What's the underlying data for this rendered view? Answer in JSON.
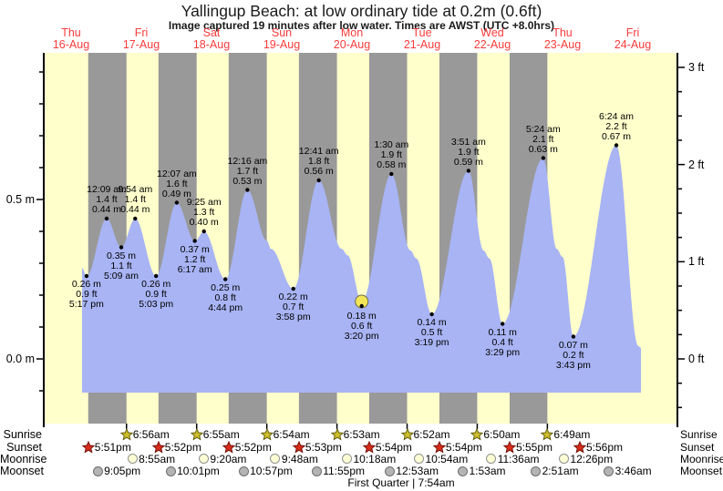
{
  "title": "Yallingup Beach: at low  ordinary tide at 0.2m (0.6ft)",
  "subtitle": "Image captured 19 minutes after low water. Times are AWST (UTC +8.0hrs)",
  "days": [
    {
      "name": "Thu",
      "date": "16-Aug"
    },
    {
      "name": "Fri",
      "date": "17-Aug"
    },
    {
      "name": "Sat",
      "date": "18-Aug"
    },
    {
      "name": "Sun",
      "date": "19-Aug"
    },
    {
      "name": "Mon",
      "date": "20-Aug"
    },
    {
      "name": "Tue",
      "date": "21-Aug"
    },
    {
      "name": "Wed",
      "date": "22-Aug"
    },
    {
      "name": "Thu",
      "date": "23-Aug"
    },
    {
      "name": "Fri",
      "date": "24-Aug"
    }
  ],
  "left_axis": {
    "unit": "m",
    "labels": [
      {
        "text": "0.5 m",
        "value": 0.5
      },
      {
        "text": "0.0 m",
        "value": 0.0
      }
    ]
  },
  "right_axis": {
    "unit": "ft",
    "labels": [
      {
        "text": "3 ft",
        "value": 3
      },
      {
        "text": "2 ft",
        "value": 2
      },
      {
        "text": "1 ft",
        "value": 1
      },
      {
        "text": "0 ft",
        "value": 0
      }
    ]
  },
  "chart_data": {
    "type": "area",
    "x_unit": "hours_from_Thu16_midnight",
    "y_unit": "m",
    "ylim": [
      -0.11,
      1.0
    ],
    "tide_events": [
      {
        "kind": "low",
        "t": 17.283,
        "height_m": 0.26,
        "height_ft": 0.9,
        "time": "5:17 pm",
        "lines": [
          "0.26 m",
          "0.9 ft",
          "5:17 pm"
        ]
      },
      {
        "kind": "high",
        "t": 24.15,
        "height_m": 0.44,
        "height_ft": 1.4,
        "time": "12:09 am",
        "lines": [
          "12:09 am",
          "1.4 ft",
          "0.44 m"
        ]
      },
      {
        "kind": "low",
        "t": 29.15,
        "height_m": 0.35,
        "height_ft": 1.1,
        "time": "5:09 am",
        "lines": [
          "0.35 m",
          "1.1 ft",
          "5:09 am"
        ]
      },
      {
        "kind": "high",
        "t": 33.9,
        "height_m": 0.44,
        "height_ft": 1.4,
        "time": "9:54 am",
        "lines": [
          "9:54 am",
          "1.4 ft",
          "0.44 m"
        ]
      },
      {
        "kind": "low",
        "t": 41.05,
        "height_m": 0.26,
        "height_ft": 0.9,
        "time": "5:03 pm",
        "lines": [
          "0.26 m",
          "0.9 ft",
          "5:03 pm"
        ]
      },
      {
        "kind": "high",
        "t": 48.117,
        "height_m": 0.49,
        "height_ft": 1.6,
        "time": "12:07 am",
        "lines": [
          "12:07 am",
          "1.6 ft",
          "0.49 m"
        ]
      },
      {
        "kind": "low",
        "t": 54.283,
        "height_m": 0.37,
        "height_ft": 1.2,
        "time": "6:17 am",
        "lines": [
          "0.37 m",
          "1.2 ft",
          "6:17 am"
        ]
      },
      {
        "kind": "high",
        "t": 57.417,
        "height_m": 0.4,
        "height_ft": 1.3,
        "time": "9:25 am",
        "lines": [
          "9:25 am",
          "1.3 ft",
          "0.40 m"
        ]
      },
      {
        "kind": "low",
        "t": 64.733,
        "height_m": 0.25,
        "height_ft": 0.8,
        "time": "4:44 pm",
        "lines": [
          "0.25 m",
          "0.8 ft",
          "4:44 pm"
        ]
      },
      {
        "kind": "high",
        "t": 72.267,
        "height_m": 0.53,
        "height_ft": 1.7,
        "time": "12:16 am",
        "lines": [
          "12:16 am",
          "1.7 ft",
          "0.53 m"
        ]
      },
      {
        "kind": "low",
        "t": 87.967,
        "height_m": 0.22,
        "height_ft": 0.7,
        "time": "3:58 pm",
        "lines": [
          "0.22 m",
          "0.7 ft",
          "3:58 pm"
        ]
      },
      {
        "kind": "high",
        "t": 96.683,
        "height_m": 0.56,
        "height_ft": 1.8,
        "time": "12:41 am",
        "lines": [
          "12:41 am",
          "1.8 ft",
          "0.56 m"
        ]
      },
      {
        "kind": "low",
        "t": 111.333,
        "height_m": 0.18,
        "height_ft": 0.6,
        "time": "3:20 pm",
        "current": true,
        "lines": [
          "0.18 m",
          "0.6 ft",
          "3:20 pm"
        ]
      },
      {
        "kind": "high",
        "t": 121.5,
        "height_m": 0.58,
        "height_ft": 1.9,
        "time": "1:30 am",
        "lines": [
          "1:30 am",
          "1.9 ft",
          "0.58 m"
        ]
      },
      {
        "kind": "low",
        "t": 135.317,
        "height_m": 0.14,
        "height_ft": 0.5,
        "time": "3:19 pm",
        "lines": [
          "0.14 m",
          "0.5 ft",
          "3:19 pm"
        ]
      },
      {
        "kind": "high",
        "t": 147.85,
        "height_m": 0.59,
        "height_ft": 1.9,
        "time": "3:51 am",
        "lines": [
          "3:51 am",
          "1.9 ft",
          "0.59 m"
        ]
      },
      {
        "kind": "low",
        "t": 159.483,
        "height_m": 0.11,
        "height_ft": 0.4,
        "time": "3:29 pm",
        "lines": [
          "0.11 m",
          "0.4 ft",
          "3:29 pm"
        ]
      },
      {
        "kind": "high",
        "t": 173.4,
        "height_m": 0.63,
        "height_ft": 2.1,
        "time": "5:24 am",
        "lines": [
          "5:24 am",
          "2.1 ft",
          "0.63 m"
        ]
      },
      {
        "kind": "low",
        "t": 183.717,
        "height_m": 0.07,
        "height_ft": 0.2,
        "time": "3:43 pm",
        "lines": [
          "0.07 m",
          "0.2 ft",
          "3:43 pm"
        ]
      },
      {
        "kind": "high",
        "t": 198.4,
        "height_m": 0.67,
        "height_ft": 2.2,
        "time": "6:24 am",
        "lines": [
          "6:24 am",
          "2.2 ft",
          "0.67 m"
        ]
      }
    ],
    "shape_points": [
      [
        15.75,
        0.285
      ],
      [
        79.0,
        0.37
      ],
      [
        80.3,
        0.345
      ],
      [
        104.5,
        0.345
      ],
      [
        106.5,
        0.325
      ],
      [
        128.0,
        0.34
      ],
      [
        130.0,
        0.315
      ],
      [
        153.0,
        0.34
      ],
      [
        155.0,
        0.315
      ],
      [
        178.0,
        0.345
      ],
      [
        180.0,
        0.32
      ],
      [
        205.9,
        0.04
      ],
      [
        206.8,
        0.035
      ]
    ],
    "current_marker": {
      "t": 111.333,
      "height_m": 0.18
    },
    "colors": {
      "day_band": "#ffffcc",
      "night_band": "#999999",
      "tide_fill": "#a8b4f4",
      "marker_fill": "#f2e656",
      "marker_stroke": "#6b6b4a",
      "day_label_red": "#fb3b3b",
      "axis": "#000000",
      "sunrise_star_fill": "#cdbd2a",
      "sunrise_star_stroke": "#5f5a0e",
      "sunset_star_fill": "#d92c1b",
      "sunset_star_stroke": "#6d1007",
      "moonrise_fill": "#ffffd6",
      "moonrise_stroke": "#8f8f8f",
      "moonset_fill": "#b4b4b4",
      "moonset_stroke": "#6e6e6e"
    }
  },
  "astronomy": {
    "rows": [
      {
        "id": "sunrise",
        "label": "Sunrise",
        "icon": "star",
        "color_key": "sunrise",
        "events": [
          {
            "day": 1,
            "time": "6:56am"
          },
          {
            "day": 2,
            "time": "6:55am"
          },
          {
            "day": 3,
            "time": "6:54am"
          },
          {
            "day": 4,
            "time": "6:53am"
          },
          {
            "day": 5,
            "time": "6:52am"
          },
          {
            "day": 6,
            "time": "6:50am"
          },
          {
            "day": 7,
            "time": "6:49am"
          }
        ]
      },
      {
        "id": "sunset",
        "label": "Sunset",
        "icon": "star",
        "color_key": "sunset",
        "events": [
          {
            "day": 0,
            "time": "5:51pm"
          },
          {
            "day": 1,
            "time": "5:52pm"
          },
          {
            "day": 2,
            "time": "5:52pm"
          },
          {
            "day": 3,
            "time": "5:53pm"
          },
          {
            "day": 4,
            "time": "5:54pm"
          },
          {
            "day": 5,
            "time": "5:54pm"
          },
          {
            "day": 6,
            "time": "5:55pm"
          },
          {
            "day": 7,
            "time": "5:56pm"
          }
        ]
      },
      {
        "id": "moonrise",
        "label": "Moonrise",
        "icon": "circle",
        "color_key": "moonrise",
        "events": [
          {
            "day": 1,
            "time": "8:55am"
          },
          {
            "day": 2,
            "time": "9:20am"
          },
          {
            "day": 3,
            "time": "9:48am"
          },
          {
            "day": 4,
            "time": "10:18am"
          },
          {
            "day": 5,
            "time": "10:54am"
          },
          {
            "day": 6,
            "time": "11:36am"
          },
          {
            "day": 7,
            "time": "12:26pm"
          }
        ]
      },
      {
        "id": "moonset",
        "label": "Moonset",
        "icon": "circle",
        "color_key": "moonset",
        "events": [
          {
            "day": 0,
            "time": "9:05pm"
          },
          {
            "day": 1,
            "time": "10:01pm"
          },
          {
            "day": 2,
            "time": "10:57pm"
          },
          {
            "day": 3,
            "time": "11:55pm"
          },
          {
            "day": 5,
            "time": "12:53am"
          },
          {
            "day": 6,
            "time": "1:53am"
          },
          {
            "day": 7,
            "time": "2:51am"
          },
          {
            "day": 8,
            "time": "3:46am"
          }
        ]
      }
    ]
  },
  "moon_phase": {
    "text": "First Quarter | 7:54am"
  }
}
